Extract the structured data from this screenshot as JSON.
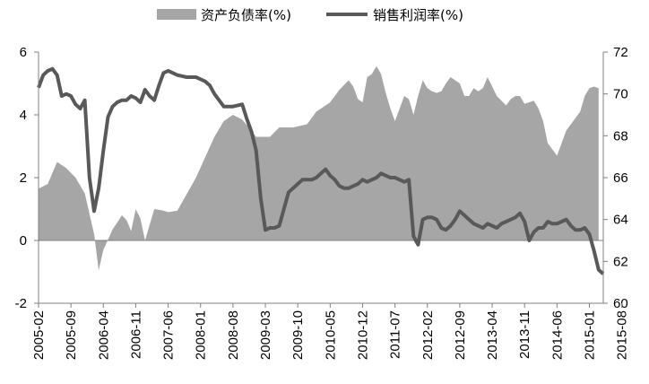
{
  "chart_data": {
    "type": "area+line",
    "title": "",
    "legend": {
      "placement": "top",
      "items": [
        {
          "label": "资产负债率(%)",
          "kind": "area",
          "color": "#a6a6a6"
        },
        {
          "label": "销售利润率(%)",
          "kind": "line",
          "color": "#595959"
        }
      ]
    },
    "x_tick_labels": [
      "2005-02",
      "2005-09",
      "2006-04",
      "2006-11",
      "2007-06",
      "2008-01",
      "2008-08",
      "2009-03",
      "2009-10",
      "2010-05",
      "2010-12",
      "2011-07",
      "2012-02",
      "2012-09",
      "2013-04",
      "2013-11",
      "2014-06",
      "2015-01",
      "2015-08"
    ],
    "y_left": {
      "range": [
        -2,
        6
      ],
      "ticks": [
        "-2",
        "0",
        "2",
        "4",
        "6"
      ]
    },
    "y_right": {
      "range": [
        60,
        72
      ],
      "ticks": [
        "60",
        "62",
        "64",
        "66",
        "68",
        "70",
        "72"
      ]
    },
    "grid": false,
    "series": [
      {
        "name": "资产负债率(%)",
        "type": "area",
        "axis": "left",
        "points": [
          [
            0,
            1.65
          ],
          [
            2,
            1.8
          ],
          [
            4,
            2.5
          ],
          [
            6,
            2.3
          ],
          [
            8,
            2.0
          ],
          [
            10,
            1.5
          ],
          [
            12,
            0.2
          ],
          [
            13,
            -0.95
          ],
          [
            14,
            -0.3
          ],
          [
            16,
            0.35
          ],
          [
            18,
            0.8
          ],
          [
            19,
            0.65
          ],
          [
            20,
            0.3
          ],
          [
            21,
            1.0
          ],
          [
            22,
            0.7
          ],
          [
            23,
            0.0
          ],
          [
            25,
            1.0
          ],
          [
            27,
            0.95
          ],
          [
            28,
            0.9
          ],
          [
            30,
            0.95
          ],
          [
            34,
            2.0
          ],
          [
            38,
            3.3
          ],
          [
            40,
            3.8
          ],
          [
            42,
            4.0
          ],
          [
            44,
            3.85
          ],
          [
            46,
            3.5
          ],
          [
            47,
            3.3
          ],
          [
            50,
            3.3
          ],
          [
            52,
            3.6
          ],
          [
            55,
            3.6
          ],
          [
            58,
            3.7
          ],
          [
            60,
            4.1
          ],
          [
            63,
            4.4
          ],
          [
            65,
            4.8
          ],
          [
            67,
            5.1
          ],
          [
            68,
            4.9
          ],
          [
            69,
            4.5
          ],
          [
            70,
            4.4
          ],
          [
            71,
            5.2
          ],
          [
            72,
            5.3
          ],
          [
            73,
            5.55
          ],
          [
            74,
            5.3
          ],
          [
            75,
            4.7
          ],
          [
            76,
            4.2
          ],
          [
            77,
            3.8
          ],
          [
            78,
            4.2
          ],
          [
            79,
            4.6
          ],
          [
            80,
            4.5
          ],
          [
            81,
            4.0
          ],
          [
            82,
            4.6
          ],
          [
            83,
            5.1
          ],
          [
            84,
            4.85
          ],
          [
            85,
            4.75
          ],
          [
            86,
            4.7
          ],
          [
            87,
            4.75
          ],
          [
            88,
            5.0
          ],
          [
            89,
            5.2
          ],
          [
            90,
            5.1
          ],
          [
            91,
            5.0
          ],
          [
            92,
            4.6
          ],
          [
            93,
            4.6
          ],
          [
            94,
            4.85
          ],
          [
            95,
            4.75
          ],
          [
            96,
            4.85
          ],
          [
            97,
            5.2
          ],
          [
            98,
            4.9
          ],
          [
            99,
            4.6
          ],
          [
            100,
            4.45
          ],
          [
            101,
            4.3
          ],
          [
            102,
            4.5
          ],
          [
            103,
            4.6
          ],
          [
            104,
            4.6
          ],
          [
            105,
            4.35
          ],
          [
            106,
            4.4
          ],
          [
            107,
            4.45
          ],
          [
            108,
            4.2
          ],
          [
            109,
            3.8
          ],
          [
            110,
            3.1
          ],
          [
            111,
            2.9
          ],
          [
            112,
            2.7
          ],
          [
            113,
            3.1
          ],
          [
            114,
            3.5
          ],
          [
            115,
            3.7
          ],
          [
            116,
            3.9
          ],
          [
            117,
            4.1
          ],
          [
            118,
            4.6
          ],
          [
            119,
            4.85
          ],
          [
            120,
            4.9
          ],
          [
            121,
            4.85
          ]
        ]
      },
      {
        "name": "销售利润率(%)",
        "type": "line",
        "axis": "right",
        "points": [
          [
            0,
            70.3
          ],
          [
            1,
            70.9
          ],
          [
            2,
            71.1
          ],
          [
            3,
            71.2
          ],
          [
            4,
            70.9
          ],
          [
            5,
            69.9
          ],
          [
            6,
            70.0
          ],
          [
            7,
            69.9
          ],
          [
            8,
            69.5
          ],
          [
            9,
            69.3
          ],
          [
            10,
            69.7
          ],
          [
            11,
            66.0
          ],
          [
            12,
            64.4
          ],
          [
            13,
            65.5
          ],
          [
            14,
            67.3
          ],
          [
            15,
            68.9
          ],
          [
            16,
            69.4
          ],
          [
            17,
            69.6
          ],
          [
            18,
            69.7
          ],
          [
            19,
            69.7
          ],
          [
            20,
            69.9
          ],
          [
            21,
            69.8
          ],
          [
            22,
            69.6
          ],
          [
            23,
            70.2
          ],
          [
            24,
            69.9
          ],
          [
            25,
            69.7
          ],
          [
            26,
            70.4
          ],
          [
            27,
            71.0
          ],
          [
            28,
            71.1
          ],
          [
            29,
            71.0
          ],
          [
            30,
            70.9
          ],
          [
            32,
            70.8
          ],
          [
            34,
            70.8
          ],
          [
            35,
            70.7
          ],
          [
            36,
            70.6
          ],
          [
            37,
            70.4
          ],
          [
            38,
            70.0
          ],
          [
            40,
            69.4
          ],
          [
            42,
            69.4
          ],
          [
            44,
            69.5
          ],
          [
            45,
            68.8
          ],
          [
            46,
            68.2
          ],
          [
            47,
            67.3
          ],
          [
            48,
            65.0
          ],
          [
            49,
            63.5
          ],
          [
            50,
            63.6
          ],
          [
            51,
            63.6
          ],
          [
            52,
            63.7
          ],
          [
            53,
            64.5
          ],
          [
            54,
            65.3
          ],
          [
            55,
            65.5
          ],
          [
            56,
            65.7
          ],
          [
            57,
            65.9
          ],
          [
            58,
            65.9
          ],
          [
            59,
            65.9
          ],
          [
            60,
            66.0
          ],
          [
            61,
            66.2
          ],
          [
            62,
            66.4
          ],
          [
            63,
            66.1
          ],
          [
            64,
            65.9
          ],
          [
            65,
            65.6
          ],
          [
            66,
            65.5
          ],
          [
            67,
            65.5
          ],
          [
            68,
            65.6
          ],
          [
            69,
            65.7
          ],
          [
            70,
            65.9
          ],
          [
            71,
            65.8
          ],
          [
            72,
            65.9
          ],
          [
            73,
            66.0
          ],
          [
            74,
            66.2
          ],
          [
            75,
            66.1
          ],
          [
            76,
            66.0
          ],
          [
            77,
            66.0
          ],
          [
            78,
            65.9
          ],
          [
            79,
            65.8
          ],
          [
            80,
            65.9
          ],
          [
            81,
            63.2
          ],
          [
            82,
            62.8
          ],
          [
            83,
            64.0
          ],
          [
            84,
            64.1
          ],
          [
            85,
            64.1
          ],
          [
            86,
            64.0
          ],
          [
            87,
            63.6
          ],
          [
            88,
            63.5
          ],
          [
            89,
            63.7
          ],
          [
            90,
            64.0
          ],
          [
            91,
            64.4
          ],
          [
            92,
            64.2
          ],
          [
            93,
            64.0
          ],
          [
            94,
            63.8
          ],
          [
            95,
            63.7
          ],
          [
            96,
            63.6
          ],
          [
            97,
            63.8
          ],
          [
            98,
            63.7
          ],
          [
            99,
            63.6
          ],
          [
            100,
            63.8
          ],
          [
            101,
            63.9
          ],
          [
            102,
            64.0
          ],
          [
            103,
            64.1
          ],
          [
            104,
            64.3
          ],
          [
            105,
            63.9
          ],
          [
            106,
            63.0
          ],
          [
            107,
            63.4
          ],
          [
            108,
            63.6
          ],
          [
            109,
            63.6
          ],
          [
            110,
            63.9
          ],
          [
            111,
            63.8
          ],
          [
            112,
            63.8
          ],
          [
            113,
            63.9
          ],
          [
            114,
            64.0
          ],
          [
            115,
            63.7
          ],
          [
            116,
            63.5
          ],
          [
            117,
            63.5
          ],
          [
            118,
            63.6
          ],
          [
            119,
            63.3
          ],
          [
            120,
            62.5
          ],
          [
            121,
            61.6
          ],
          [
            122,
            61.4
          ]
        ]
      }
    ]
  }
}
